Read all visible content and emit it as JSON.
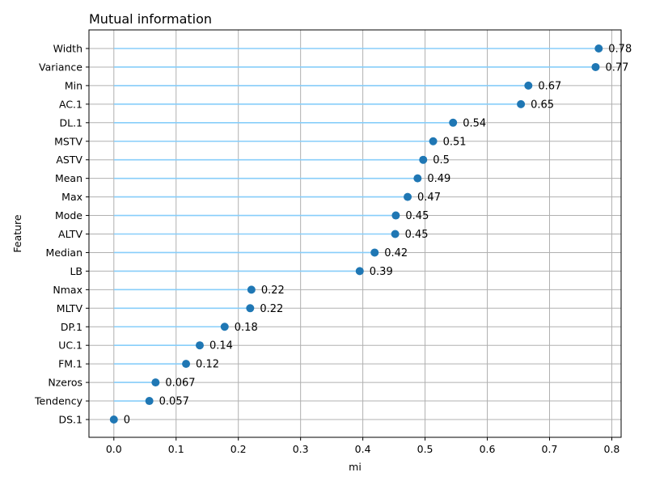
{
  "chart_data": {
    "type": "lollipop",
    "title": "Mutual information",
    "xlabel": "mi",
    "ylabel": "Feature",
    "xlim": [
      -0.04,
      0.815
    ],
    "xticks": [
      0.0,
      0.1,
      0.2,
      0.3,
      0.4,
      0.5,
      0.6,
      0.7,
      0.8
    ],
    "xtick_labels": [
      "0.0",
      "0.1",
      "0.2",
      "0.3",
      "0.4",
      "0.5",
      "0.6",
      "0.7",
      "0.8"
    ],
    "grid": true,
    "colors": {
      "stem": "#87cefa",
      "marker": "#1f77b4"
    },
    "categories": [
      "Width",
      "Variance",
      "Min",
      "AC.1",
      "DL.1",
      "MSTV",
      "ASTV",
      "Mean",
      "Max",
      "Mode",
      "ALTV",
      "Median",
      "LB",
      "Nmax",
      "MLTV",
      "DP.1",
      "UC.1",
      "FM.1",
      "Nzeros",
      "Tendency",
      "DS.1"
    ],
    "values": [
      0.779,
      0.774,
      0.666,
      0.654,
      0.545,
      0.513,
      0.497,
      0.488,
      0.472,
      0.453,
      0.452,
      0.419,
      0.395,
      0.221,
      0.219,
      0.178,
      0.138,
      0.116,
      0.067,
      0.057,
      0.0
    ],
    "value_labels": [
      "0.78",
      "0.77",
      "0.67",
      "0.65",
      "0.54",
      "0.51",
      "0.5",
      "0.49",
      "0.47",
      "0.45",
      "0.45",
      "0.42",
      "0.39",
      "0.22",
      "0.22",
      "0.18",
      "0.14",
      "0.12",
      "0.067",
      "0.057",
      "0"
    ]
  }
}
